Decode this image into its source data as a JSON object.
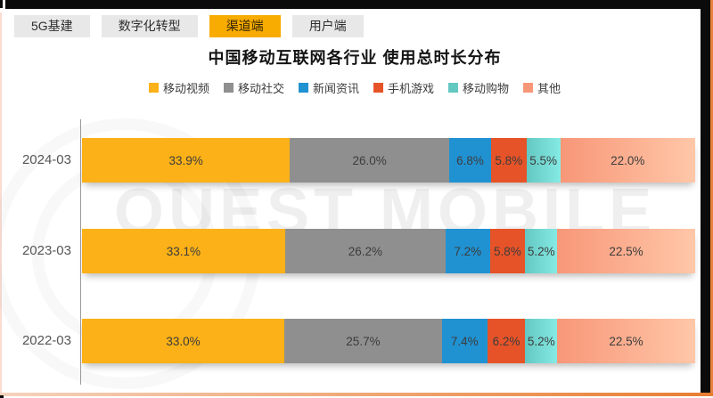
{
  "tabs": {
    "items": [
      {
        "label": "5G基建",
        "active": false
      },
      {
        "label": "数字化转型",
        "active": false
      },
      {
        "label": "渠道端",
        "active": true
      },
      {
        "label": "用户端",
        "active": false
      }
    ],
    "active_color": "#F8AB00",
    "inactive_color": "#E8E8E8"
  },
  "watermark": {
    "text": "QUEST MOBILE"
  },
  "chart_data": {
    "type": "bar",
    "variant": "horizontal-stacked",
    "title": "中国移动互联网各行业 使用总时长分布",
    "categories": [
      "2024-03",
      "2023-03",
      "2022-03"
    ],
    "series": [
      {
        "name": "移动视频",
        "color": "#FBB117",
        "values": [
          33.9,
          33.1,
          33.0
        ]
      },
      {
        "name": "移动社交",
        "color": "#8F8F8F",
        "values": [
          26.0,
          26.2,
          25.7
        ]
      },
      {
        "name": "新闻资讯",
        "color": "#2092D2",
        "values": [
          6.8,
          7.2,
          7.4
        ]
      },
      {
        "name": "手机游戏",
        "color": "#E75328",
        "values": [
          5.8,
          5.8,
          6.2
        ]
      },
      {
        "name": "移动购物",
        "color": "#64C8C2",
        "values": [
          5.5,
          5.2,
          5.2
        ]
      },
      {
        "name": "其他",
        "color": "#F79778",
        "values": [
          22.0,
          22.5,
          22.5
        ]
      }
    ],
    "value_suffix": "%",
    "value_decimals": 1,
    "xlim": [
      0,
      100
    ],
    "legend_position": "top",
    "grid": false,
    "frame_colors": {
      "border_black": "#0b0b0b",
      "border_orange": "#E8813B"
    }
  }
}
